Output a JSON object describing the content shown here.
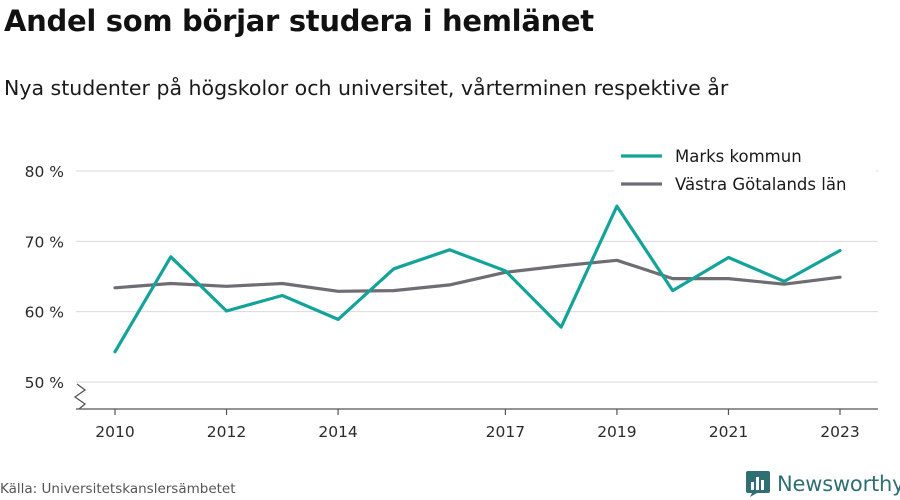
{
  "title": "Andel som börjar studera i hemlänet",
  "subtitle": "Nya studenter på högskolor och universitet, vårterminen respektive år",
  "source": "Källa: Universitetskanslersämbetet",
  "brand": {
    "name": "Newsworthy",
    "icon": "bar-chart-logo-icon",
    "color": "#2f6f73"
  },
  "chart_data": {
    "type": "line",
    "x": [
      2010,
      2011,
      2012,
      2013,
      2014,
      2015,
      2016,
      2017,
      2018,
      2019,
      2020,
      2021,
      2022,
      2023
    ],
    "x_tick_labels": [
      "2010",
      "2012",
      "2014",
      "2017",
      "2019",
      "2021",
      "2023"
    ],
    "y_tick_labels": [
      "50 %",
      "60 %",
      "70 %",
      "80 %"
    ],
    "y_ticks": [
      50,
      60,
      70,
      80
    ],
    "ylim": [
      50,
      80
    ],
    "y_axis_break": true,
    "grid": true,
    "legend_position": "top-right",
    "series": [
      {
        "name": "Marks kommun",
        "color": "#14a39a",
        "values": [
          54.3,
          67.8,
          60.1,
          62.3,
          58.9,
          66.1,
          68.8,
          65.8,
          57.8,
          75.0,
          63.0,
          67.7,
          64.3,
          68.7
        ]
      },
      {
        "name": "Västra Götalands län",
        "color": "#6f6d73",
        "values": [
          63.4,
          64.0,
          63.6,
          64.0,
          62.9,
          63.0,
          63.8,
          65.6,
          66.5,
          67.3,
          64.7,
          64.7,
          63.9,
          64.9
        ]
      }
    ]
  }
}
